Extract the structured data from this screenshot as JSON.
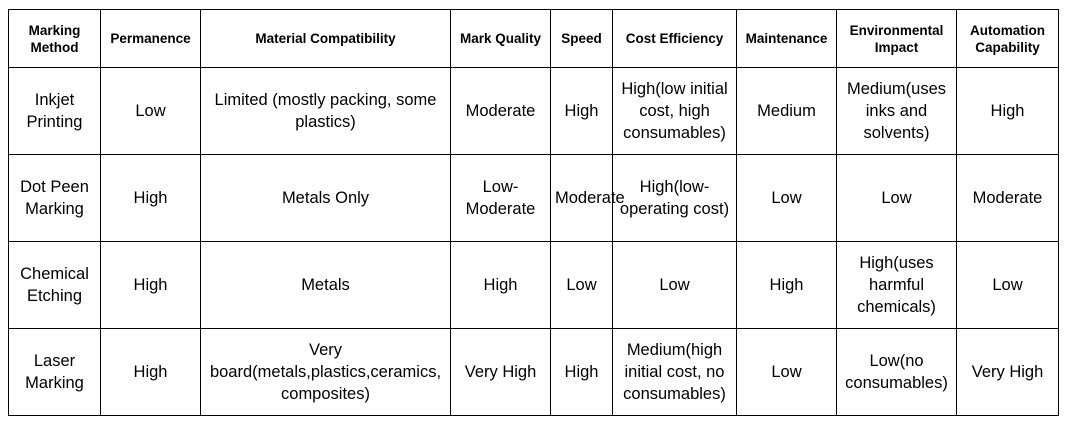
{
  "table": {
    "headers": [
      "Marking Method",
      "Permanence",
      "Material Compatibility",
      "Mark Quality",
      "Speed",
      "Cost Efficiency",
      "Maintenance",
      "Environmental Impact",
      "Automation Capability"
    ],
    "rows": [
      [
        "Inkjet Printing",
        "Low",
        "Limited (mostly packing, some plastics)",
        "Moderate",
        "High",
        "High(low initial cost, high consumables)",
        "Medium",
        "Medium(uses inks and solvents)",
        "High"
      ],
      [
        "Dot Peen Marking",
        "High",
        "Metals Only",
        "Low-Moderate",
        "Moderate",
        "High(low-operating cost)",
        "Low",
        "Low",
        "Moderate"
      ],
      [
        "Chemical Etching",
        "High",
        "Metals",
        "High",
        "Low",
        "Low",
        "High",
        "High(uses harmful chemicals)",
        "Low"
      ],
      [
        "Laser Marking",
        "High",
        "Very board(metals,plastics,ceramics, composites)",
        "Very High",
        "High",
        "Medium(high initial cost, no consumables)",
        "Low",
        "Low(no consumables)",
        "Very High"
      ]
    ]
  }
}
